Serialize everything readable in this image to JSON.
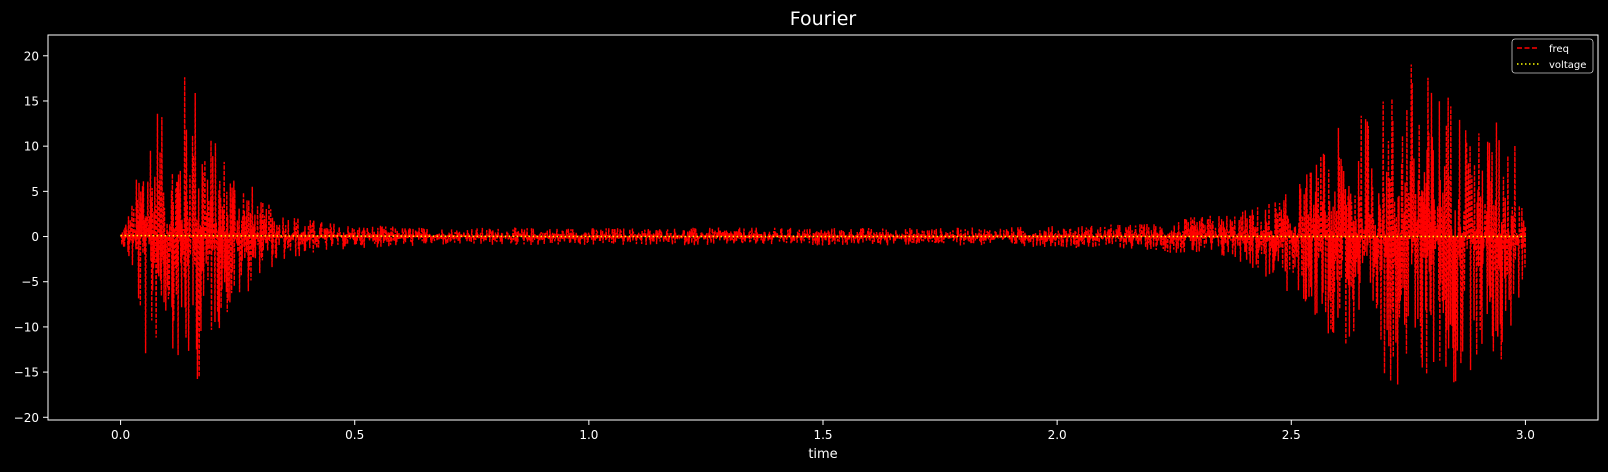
{
  "colors": {
    "background": "#000000",
    "axes": "#ffffff",
    "freq": "#ff0000",
    "voltage": "#ffff00"
  },
  "chart_data": {
    "type": "line",
    "title": "Fourier",
    "xlabel": "time",
    "ylabel": "",
    "xlim": [
      -0.155,
      3.155
    ],
    "ylim": [
      -20.3,
      22.3
    ],
    "xticks": [
      0.0,
      0.5,
      1.0,
      1.5,
      2.0,
      2.5,
      3.0
    ],
    "xtick_labels": [
      "0.0",
      "0.5",
      "1.0",
      "1.5",
      "2.0",
      "2.5",
      "3.0"
    ],
    "yticks": [
      -20,
      -15,
      -10,
      -5,
      0,
      5,
      10,
      15,
      20
    ],
    "ytick_labels": [
      "−20",
      "−15",
      "−10",
      "−5",
      "0",
      "5",
      "10",
      "15",
      "20"
    ],
    "grid": false,
    "legend_position": "upper right",
    "series": [
      {
        "name": "freq",
        "color": "#ff0000",
        "linestyle": "dashed",
        "envelope": {
          "x": [
            0.0,
            0.03,
            0.05,
            0.08,
            0.1,
            0.13,
            0.15,
            0.17,
            0.2,
            0.25,
            0.3,
            0.4,
            0.5,
            0.7,
            1.0,
            1.3,
            1.5,
            1.8,
            2.0,
            2.2,
            2.4,
            2.5,
            2.6,
            2.7,
            2.75,
            2.8,
            2.85,
            2.9,
            2.95,
            3.0
          ],
          "ymax": [
            0.5,
            5.0,
            14.0,
            17.0,
            8.0,
            18.0,
            20.5,
            17.0,
            11.0,
            9.0,
            4.0,
            2.0,
            1.3,
            1.0,
            1.0,
            1.0,
            1.0,
            1.0,
            1.2,
            1.5,
            3.0,
            5.0,
            12.0,
            16.0,
            20.5,
            18.0,
            17.0,
            12.0,
            14.0,
            9.0
          ],
          "ymin": [
            -0.5,
            -5.0,
            -15.0,
            -12.0,
            -9.0,
            -18.0,
            -16.0,
            -16.5,
            -11.0,
            -8.0,
            -4.0,
            -2.0,
            -1.3,
            -1.0,
            -1.0,
            -1.0,
            -1.0,
            -1.0,
            -1.2,
            -1.5,
            -3.0,
            -7.0,
            -12.0,
            -16.0,
            -17.0,
            -16.0,
            -18.5,
            -13.0,
            -15.0,
            -5.0
          ]
        }
      },
      {
        "name": "voltage",
        "color": "#ffff00",
        "linestyle": "dotted",
        "x": [
          0.0,
          0.5,
          1.0,
          1.5,
          2.0,
          2.5,
          3.0
        ],
        "y": [
          0.1,
          0.05,
          0.0,
          0.0,
          0.0,
          0.0,
          0.0
        ]
      }
    ]
  }
}
